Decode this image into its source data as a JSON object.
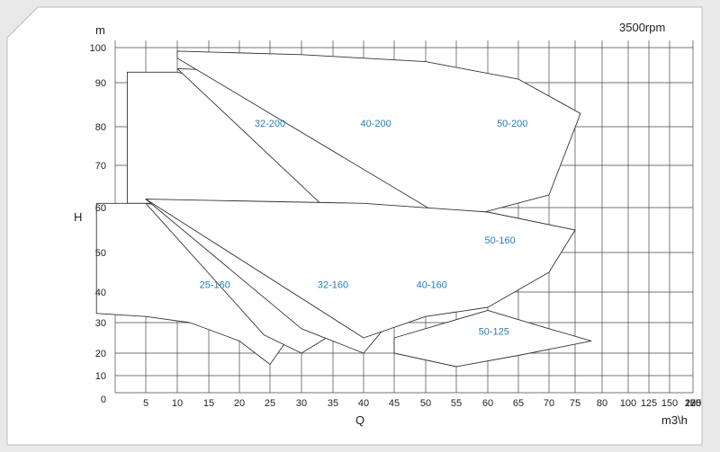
{
  "chart_data": {
    "type": "area",
    "title": "3500rpm",
    "xlabel": "Q",
    "ylabel": "H",
    "x_unit": "m3\\h",
    "y_unit": "m",
    "x_ticks": [
      0,
      5,
      10,
      15,
      20,
      25,
      30,
      35,
      40,
      45,
      50,
      55,
      60,
      65,
      70,
      75,
      80,
      100,
      125,
      150,
      175,
      200,
      225,
      250
    ],
    "y_ticks": [
      0,
      10,
      20,
      30,
      40,
      50,
      60,
      70,
      80,
      90,
      100
    ],
    "ylim": [
      0,
      100
    ],
    "grid": true,
    "series": [
      {
        "name": "32-200",
        "points": [
          [
            2,
            93
          ],
          [
            10,
            93
          ],
          [
            20,
            89
          ],
          [
            30,
            81
          ],
          [
            37,
            72
          ],
          [
            33,
            61
          ],
          [
            27,
            61
          ],
          [
            2,
            61
          ]
        ]
      },
      {
        "name": "40-200",
        "points": [
          [
            10,
            94
          ],
          [
            40,
            92
          ],
          [
            55,
            85
          ],
          [
            61,
            75
          ],
          [
            51,
            57
          ],
          [
            33,
            61
          ]
        ]
      },
      {
        "name": "50-200",
        "points": [
          [
            10,
            97
          ],
          [
            10,
            99
          ],
          [
            30,
            98
          ],
          [
            50,
            96
          ],
          [
            65,
            91
          ],
          [
            76,
            83
          ],
          [
            70,
            63
          ],
          [
            54,
            57
          ]
        ]
      },
      {
        "name": "25-160",
        "points": [
          [
            -3,
            61
          ],
          [
            5,
            61
          ],
          [
            15,
            58
          ],
          [
            23,
            52
          ],
          [
            29,
            45
          ],
          [
            33,
            40
          ],
          [
            30,
            31
          ],
          [
            25,
            15
          ],
          [
            20,
            24
          ],
          [
            12,
            30
          ],
          [
            5,
            32
          ],
          [
            -3,
            33
          ]
        ]
      },
      {
        "name": "32-160",
        "points": [
          [
            5,
            61
          ],
          [
            22,
            58
          ],
          [
            33,
            50
          ],
          [
            42,
            40
          ],
          [
            38,
            30
          ],
          [
            30,
            20
          ],
          [
            24,
            26
          ]
        ]
      },
      {
        "name": "40-160",
        "points": [
          [
            5,
            62
          ],
          [
            30,
            60
          ],
          [
            45,
            55
          ],
          [
            55,
            48
          ],
          [
            60,
            40
          ],
          [
            45,
            32
          ],
          [
            40,
            20
          ],
          [
            30,
            28
          ]
        ]
      },
      {
        "name": "50-160",
        "points": [
          [
            5,
            62
          ],
          [
            40,
            61
          ],
          [
            60,
            59
          ],
          [
            75,
            55
          ],
          [
            70,
            45
          ],
          [
            60,
            35
          ],
          [
            50,
            32
          ],
          [
            40,
            25
          ]
        ]
      },
      {
        "name": "50-125",
        "points": [
          [
            45,
            25
          ],
          [
            60,
            34
          ],
          [
            70,
            28
          ],
          [
            78,
            24
          ],
          [
            65,
            19
          ],
          [
            55,
            14
          ],
          [
            45,
            20
          ]
        ]
      }
    ],
    "labels": [
      {
        "text": "32-200",
        "x": 25,
        "y": 80
      },
      {
        "text": "40-200",
        "x": 42,
        "y": 80
      },
      {
        "text": "50-200",
        "x": 64,
        "y": 80
      },
      {
        "text": "25-160",
        "x": 16,
        "y": 41
      },
      {
        "text": "32-160",
        "x": 35,
        "y": 41
      },
      {
        "text": "40-160",
        "x": 51,
        "y": 41
      },
      {
        "text": "50-160",
        "x": 62,
        "y": 52
      },
      {
        "text": "50-125",
        "x": 61,
        "y": 26
      }
    ]
  }
}
